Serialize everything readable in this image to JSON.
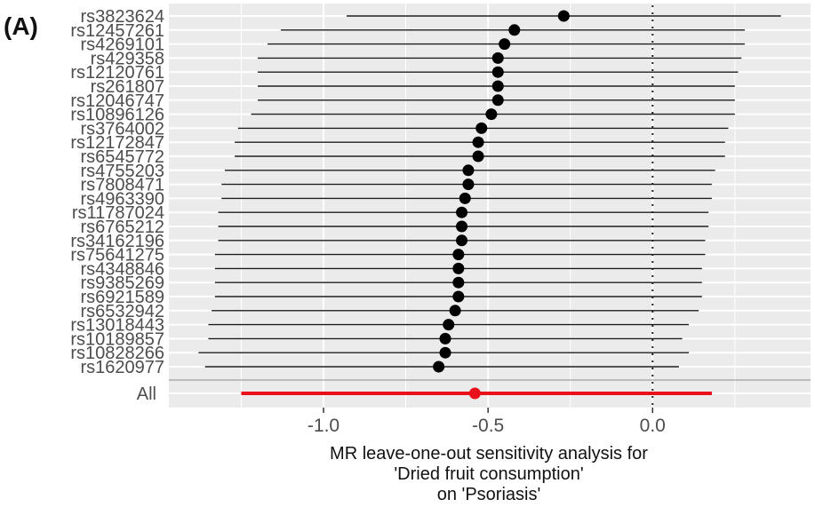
{
  "panel_label": "(A)",
  "chart_data": {
    "type": "scatter",
    "subtype": "forest-plot",
    "x_ticks": [
      -1.0,
      -0.5,
      0.0
    ],
    "x_tick_labels": [
      "-1.0",
      "-0.5",
      "0.0"
    ],
    "xlim": [
      -1.47,
      0.48
    ],
    "reference_line_x": 0,
    "grid": true,
    "xlabel_lines": [
      "MR leave-one-out sensitivity analysis for",
      "'Dried fruit consumption'",
      "on 'Psoriasis'"
    ],
    "colors": {
      "point": "#000000",
      "all": "#e8101a",
      "panel": "#ebebeb",
      "grid": "#ffffff"
    },
    "snps": [
      {
        "name": "rs3823624",
        "est": -0.27,
        "lo": -0.93,
        "hi": 0.39
      },
      {
        "name": "rs12457261",
        "est": -0.42,
        "lo": -1.13,
        "hi": 0.28
      },
      {
        "name": "rs4269101",
        "est": -0.45,
        "lo": -1.17,
        "hi": 0.28
      },
      {
        "name": "rs429358",
        "est": -0.47,
        "lo": -1.2,
        "hi": 0.27
      },
      {
        "name": "rs12120761",
        "est": -0.47,
        "lo": -1.2,
        "hi": 0.26
      },
      {
        "name": "rs261807",
        "est": -0.47,
        "lo": -1.2,
        "hi": 0.25
      },
      {
        "name": "rs12046747",
        "est": -0.47,
        "lo": -1.2,
        "hi": 0.25
      },
      {
        "name": "rs10896126",
        "est": -0.49,
        "lo": -1.22,
        "hi": 0.25
      },
      {
        "name": "rs3764002",
        "est": -0.52,
        "lo": -1.26,
        "hi": 0.23
      },
      {
        "name": "rs12172847",
        "est": -0.53,
        "lo": -1.27,
        "hi": 0.22
      },
      {
        "name": "rs6545772",
        "est": -0.53,
        "lo": -1.27,
        "hi": 0.22
      },
      {
        "name": "rs4755203",
        "est": -0.56,
        "lo": -1.3,
        "hi": 0.19
      },
      {
        "name": "rs7808471",
        "est": -0.56,
        "lo": -1.31,
        "hi": 0.18
      },
      {
        "name": "rs4963390",
        "est": -0.57,
        "lo": -1.31,
        "hi": 0.18
      },
      {
        "name": "rs11787024",
        "est": -0.58,
        "lo": -1.32,
        "hi": 0.17
      },
      {
        "name": "rs6765212",
        "est": -0.58,
        "lo": -1.32,
        "hi": 0.17
      },
      {
        "name": "rs34162196",
        "est": -0.58,
        "lo": -1.32,
        "hi": 0.16
      },
      {
        "name": "rs75641275",
        "est": -0.59,
        "lo": -1.33,
        "hi": 0.16
      },
      {
        "name": "rs4348846",
        "est": -0.59,
        "lo": -1.33,
        "hi": 0.15
      },
      {
        "name": "rs9385269",
        "est": -0.59,
        "lo": -1.33,
        "hi": 0.15
      },
      {
        "name": "rs6921589",
        "est": -0.59,
        "lo": -1.33,
        "hi": 0.15
      },
      {
        "name": "rs6532942",
        "est": -0.6,
        "lo": -1.34,
        "hi": 0.14
      },
      {
        "name": "rs13018443",
        "est": -0.62,
        "lo": -1.35,
        "hi": 0.11
      },
      {
        "name": "rs10189857",
        "est": -0.63,
        "lo": -1.35,
        "hi": 0.09
      },
      {
        "name": "rs10828266",
        "est": -0.63,
        "lo": -1.38,
        "hi": 0.11
      },
      {
        "name": "rs1620977",
        "est": -0.65,
        "lo": -1.36,
        "hi": 0.08
      }
    ],
    "all": {
      "name": "All",
      "est": -0.54,
      "lo": -1.25,
      "hi": 0.18
    }
  }
}
